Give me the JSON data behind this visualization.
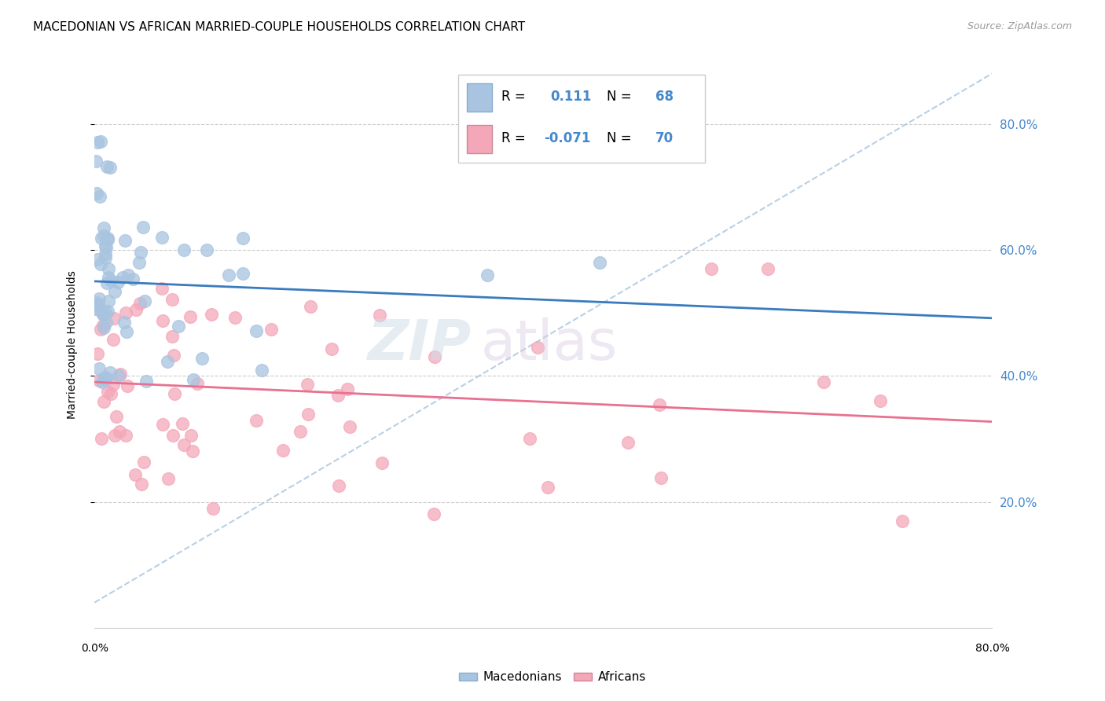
{
  "title": "MACEDONIAN VS AFRICAN MARRIED-COUPLE HOUSEHOLDS CORRELATION CHART",
  "source": "Source: ZipAtlas.com",
  "ylabel": "Married-couple Households",
  "xlim": [
    0.0,
    0.8
  ],
  "ylim": [
    0.0,
    0.9
  ],
  "mac_color": "#a8c4e0",
  "afr_color": "#f4a7b9",
  "mac_line_color": "#3a7bbf",
  "afr_line_color": "#e87090",
  "dashed_line_color": "#a8c4e0",
  "R_mac": 0.111,
  "R_afr": -0.071,
  "N_mac": 68,
  "N_afr": 70,
  "watermark_zip": "ZIP",
  "watermark_atlas": "atlas",
  "background_color": "#ffffff",
  "grid_color": "#cccccc",
  "tick_color": "#4488cc",
  "title_fontsize": 11,
  "legend_fontsize": 12,
  "source_color": "#999999"
}
